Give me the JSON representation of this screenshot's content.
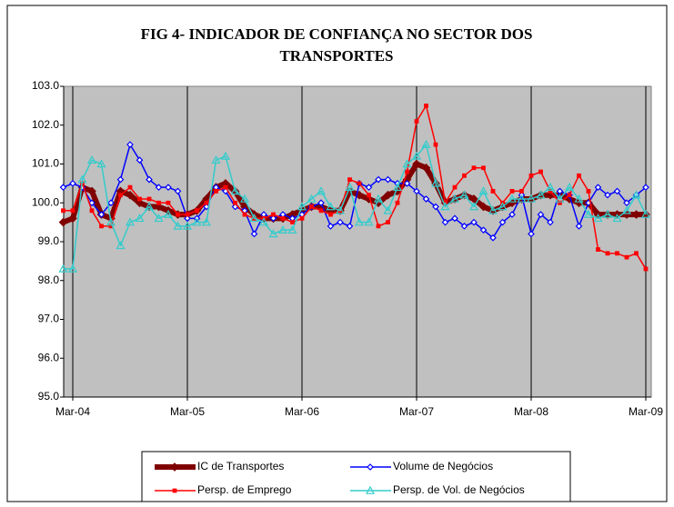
{
  "chart_data": {
    "type": "line",
    "title": "FIG 4- INDICADOR DE CONFIANÇA NO SECTOR DOS TRANSPORTES",
    "categories": [
      null,
      "Mar-04",
      null,
      null,
      null,
      null,
      null,
      null,
      null,
      null,
      null,
      null,
      null,
      "Mar-05",
      null,
      null,
      null,
      null,
      null,
      null,
      null,
      null,
      null,
      null,
      null,
      "Mar-06",
      null,
      null,
      null,
      null,
      null,
      null,
      null,
      null,
      null,
      null,
      null,
      "Mar-07",
      null,
      null,
      null,
      null,
      null,
      null,
      null,
      null,
      null,
      null,
      null,
      "Mar-08",
      null,
      null,
      null,
      null,
      null,
      null,
      null,
      null,
      null,
      null,
      null,
      "Mar-09"
    ],
    "ylim": [
      95,
      103
    ],
    "yticks": [
      {
        "value": 95,
        "label": "95.0"
      },
      {
        "value": 96,
        "label": "96.0"
      },
      {
        "value": 97,
        "label": "97.0"
      },
      {
        "value": 98,
        "label": "98.0"
      },
      {
        "value": 99,
        "label": "99.0"
      },
      {
        "value": 100,
        "label": "100.0"
      },
      {
        "value": 101,
        "label": "101.0"
      },
      {
        "value": 102,
        "label": "102.0"
      },
      {
        "value": 103,
        "label": "103.0"
      }
    ],
    "grid": true,
    "series": [
      {
        "name": "IC de  Transportes",
        "color": "#800000",
        "values": [
          99.5,
          99.6,
          100.4,
          100.3,
          99.7,
          99.6,
          100.3,
          100.2,
          100.0,
          99.9,
          99.9,
          99.8,
          99.7,
          99.7,
          99.8,
          100.1,
          100.4,
          100.5,
          100.3,
          99.9,
          99.7,
          99.6,
          99.6,
          99.6,
          99.7,
          99.8,
          99.9,
          99.9,
          99.8,
          99.8,
          100.3,
          100.2,
          100.1,
          100.0,
          100.2,
          100.3,
          100.6,
          101.0,
          100.9,
          100.5,
          100.0,
          100.1,
          100.2,
          100.1,
          99.9,
          99.8,
          99.9,
          100.0,
          100.1,
          100.1,
          100.2,
          100.2,
          100.2,
          100.1,
          100.0,
          100.0,
          99.7,
          99.7,
          99.7,
          99.7,
          99.7,
          99.7
        ]
      },
      {
        "name": "Volume de Negócios",
        "color": "#0000ff",
        "values": [
          100.4,
          100.5,
          100.4,
          100.0,
          99.7,
          100.0,
          100.6,
          101.5,
          101.1,
          100.6,
          100.4,
          100.4,
          100.3,
          99.6,
          99.6,
          99.9,
          100.4,
          100.3,
          99.9,
          99.8,
          99.2,
          99.7,
          99.6,
          99.7,
          99.6,
          99.7,
          99.9,
          100.0,
          99.4,
          99.5,
          99.4,
          100.5,
          100.4,
          100.6,
          100.6,
          100.5,
          100.5,
          100.3,
          100.1,
          99.9,
          99.5,
          99.6,
          99.4,
          99.5,
          99.3,
          99.1,
          99.5,
          99.7,
          100.2,
          99.2,
          99.7,
          99.5,
          100.3,
          100.2,
          99.4,
          100.0,
          100.4,
          100.2,
          100.3,
          100.0,
          100.2,
          100.4
        ]
      },
      {
        "name": "Persp. de Emprego",
        "color": "#ff0000",
        "values": [
          99.8,
          99.8,
          100.5,
          99.8,
          99.4,
          99.4,
          100.2,
          100.4,
          100.1,
          100.1,
          100.0,
          100.0,
          99.7,
          99.7,
          99.8,
          100.0,
          100.3,
          100.4,
          100.0,
          99.7,
          99.6,
          99.6,
          99.7,
          99.6,
          99.5,
          99.6,
          99.9,
          99.8,
          99.7,
          99.8,
          100.6,
          100.5,
          100.2,
          99.4,
          99.5,
          100.0,
          100.8,
          102.1,
          102.5,
          101.5,
          100.0,
          100.4,
          100.7,
          100.9,
          100.9,
          100.3,
          100.0,
          100.3,
          100.3,
          100.7,
          100.8,
          100.3,
          100.0,
          100.2,
          100.7,
          100.3,
          98.8,
          98.7,
          98.7,
          98.6,
          98.7,
          98.3
        ]
      },
      {
        "name": "Persp. de Vol. de Negócios",
        "color": "#33cccc",
        "values": [
          98.3,
          98.3,
          100.6,
          101.1,
          101.0,
          99.5,
          98.9,
          99.5,
          99.6,
          99.9,
          99.6,
          99.7,
          99.4,
          99.4,
          99.5,
          99.5,
          101.1,
          101.2,
          100.3,
          100.1,
          99.6,
          99.5,
          99.2,
          99.3,
          99.3,
          99.9,
          100.1,
          100.3,
          99.9,
          99.8,
          100.4,
          99.5,
          99.5,
          100.1,
          99.8,
          100.4,
          101.0,
          101.2,
          101.5,
          100.5,
          99.9,
          100.1,
          100.2,
          99.9,
          100.3,
          99.8,
          99.9,
          100.1,
          100.1,
          100.1,
          100.2,
          100.4,
          100.1,
          100.4,
          100.1,
          99.7,
          99.6,
          99.7,
          99.6,
          99.8,
          100.2,
          99.7
        ]
      }
    ]
  }
}
